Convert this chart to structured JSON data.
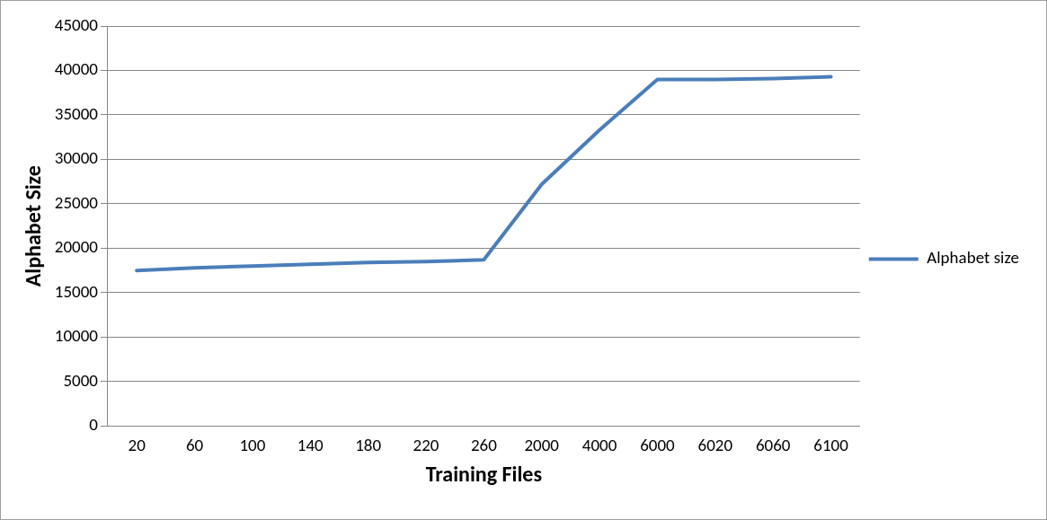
{
  "chart_data": {
    "type": "line",
    "xlabel": "Training Files",
    "ylabel": "Alphabet Size",
    "categories": [
      "20",
      "60",
      "100",
      "140",
      "180",
      "220",
      "260",
      "2000",
      "4000",
      "6000",
      "6020",
      "6060",
      "6100"
    ],
    "series": [
      {
        "name": "Alphabet size",
        "color": "#4a7ebb",
        "values": [
          17500,
          17800,
          18000,
          18200,
          18400,
          18500,
          18700,
          27200,
          33300,
          39000,
          39000,
          39100,
          39300
        ]
      }
    ],
    "ylim": [
      0,
      45000
    ],
    "yticks": [
      0,
      5000,
      10000,
      15000,
      20000,
      25000,
      30000,
      35000,
      40000,
      45000
    ],
    "grid": "y",
    "legend": "right",
    "marker": "none",
    "line_style": "solid"
  }
}
